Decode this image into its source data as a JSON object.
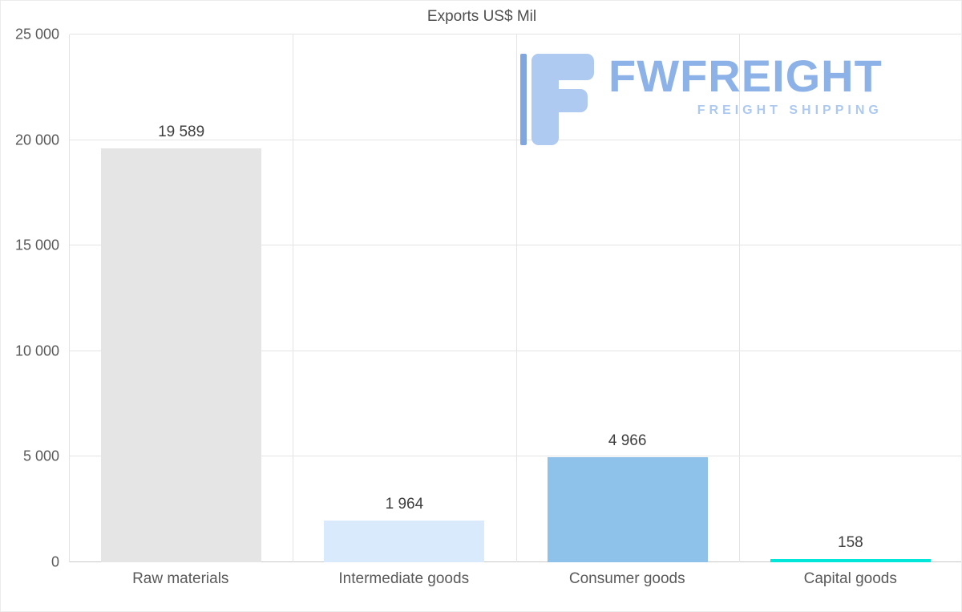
{
  "chart_data": {
    "type": "bar",
    "title": "Exports US$ Mil",
    "categories": [
      "Raw materials",
      "Intermediate goods",
      "Consumer goods",
      "Capital goods"
    ],
    "values": [
      19589,
      1964,
      4966,
      158
    ],
    "value_labels": [
      "19 589",
      "1 964",
      "4 966",
      "158"
    ],
    "bar_colors": [
      "#e5e5e5",
      "#d9eafc",
      "#8ec2ea",
      "#00e6d8"
    ],
    "xlabel": "",
    "ylabel": "",
    "ylim": [
      0,
      25000
    ],
    "yticks": [
      0,
      5000,
      10000,
      15000,
      20000,
      25000
    ],
    "ytick_labels": [
      "0",
      "5 000",
      "10 000",
      "15 000",
      "20 000",
      "25 000"
    ],
    "grid": true,
    "legend": false
  },
  "watermark": {
    "brand": "FWFREIGHT",
    "tagline": "FREIGHT SHIPPING",
    "brand_color": "#87aee6",
    "tagline_color": "#aac7f0",
    "icon_color": "#abc8f1",
    "icon_accent_color": "#7aa2df"
  }
}
